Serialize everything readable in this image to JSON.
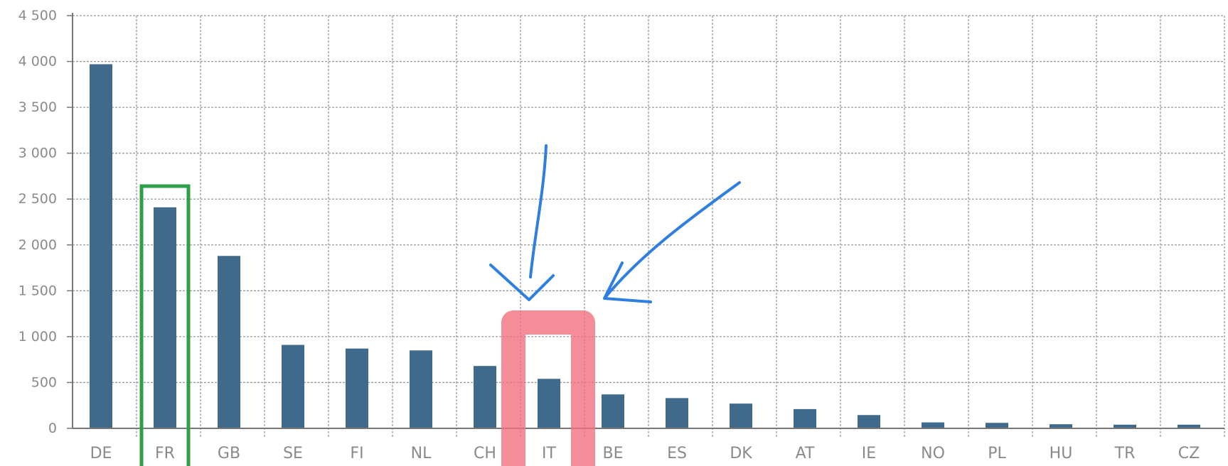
{
  "chart_data": {
    "type": "bar",
    "categories": [
      "DE",
      "FR",
      "GB",
      "SE",
      "FI",
      "NL",
      "CH",
      "IT",
      "BE",
      "ES",
      "DK",
      "AT",
      "IE",
      "NO",
      "PL",
      "HU",
      "TR",
      "CZ"
    ],
    "values": [
      3970,
      2410,
      1880,
      910,
      870,
      850,
      680,
      540,
      370,
      330,
      270,
      210,
      145,
      65,
      60,
      45,
      40,
      40
    ],
    "y_ticks": [
      "0",
      "500",
      "1 000",
      "1 500",
      "2 000",
      "2 500",
      "3 000",
      "3 500",
      "4 000",
      "4 500"
    ],
    "ylim": [
      0,
      4500
    ],
    "grid": true,
    "colors": {
      "bar": "#3f6a8c",
      "grid": "#9a9a9a",
      "axis": "#777777",
      "highlight_box": "#2e9e48",
      "highlight_marker": "#f2707e",
      "annotation_arrow": "#2f7fe0"
    },
    "annotations": [
      {
        "type": "box",
        "target": "FR",
        "color": "green"
      },
      {
        "type": "marker",
        "target": "IT",
        "color": "red"
      },
      {
        "type": "arrow",
        "target": "IT",
        "color": "blue"
      },
      {
        "type": "arrow",
        "target": "IT",
        "color": "blue"
      }
    ]
  }
}
